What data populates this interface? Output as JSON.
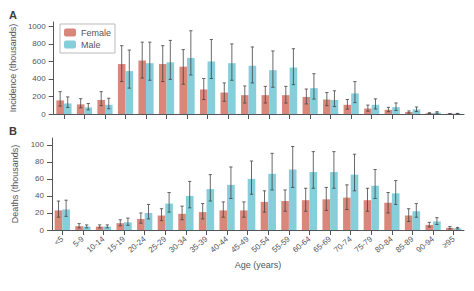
{
  "chart_data": [
    {
      "type": "bar",
      "title": "A",
      "ylabel": "Incidence (thousands)",
      "categories": [
        "<5",
        "5-9",
        "10-14",
        "15-19",
        "20-24",
        "25-29",
        "30-34",
        "35-39",
        "40-44",
        "45-49",
        "50-54",
        "55-59",
        "60-64",
        "65-69",
        "70-74",
        "75-79",
        "80-84",
        "85-89",
        "90-94",
        "≥95"
      ],
      "series": [
        {
          "name": "Female",
          "color": "#d9877b",
          "values": [
            155,
            110,
            160,
            570,
            610,
            570,
            540,
            280,
            245,
            215,
            215,
            215,
            195,
            165,
            105,
            62,
            48,
            22,
            9,
            3
          ],
          "error_low": [
            65,
            40,
            65,
            200,
            200,
            200,
            200,
            115,
            100,
            90,
            90,
            90,
            80,
            70,
            50,
            30,
            22,
            11,
            5,
            2
          ],
          "error_high": [
            100,
            65,
            95,
            210,
            210,
            210,
            195,
            125,
            110,
            105,
            100,
            100,
            90,
            80,
            60,
            40,
            28,
            13,
            6,
            2
          ]
        },
        {
          "name": "Male",
          "color": "#85ceda",
          "values": [
            120,
            75,
            105,
            490,
            580,
            590,
            640,
            600,
            580,
            550,
            500,
            530,
            295,
            160,
            235,
            105,
            78,
            52,
            16,
            4
          ],
          "error_low": [
            45,
            28,
            45,
            195,
            195,
            195,
            195,
            195,
            195,
            195,
            195,
            195,
            125,
            75,
            105,
            48,
            38,
            24,
            8,
            2
          ],
          "error_high": [
            75,
            45,
            75,
            240,
            240,
            250,
            310,
            250,
            220,
            215,
            220,
            215,
            165,
            105,
            135,
            68,
            48,
            28,
            10,
            3
          ]
        }
      ],
      "ylim": [
        0,
        1050
      ],
      "yticks": [
        0,
        200,
        400,
        600,
        800,
        1000
      ],
      "grid": false,
      "legend": "upper left",
      "tick_labels": "y"
    },
    {
      "type": "bar",
      "title": "B",
      "xlabel": "Age (years)",
      "ylabel": "Deaths (thousands)",
      "categories": [
        "<5",
        "5-9",
        "10-14",
        "15-19",
        "20-24",
        "25-29",
        "30-34",
        "35-39",
        "40-44",
        "45-49",
        "50-54",
        "55-59",
        "60-64",
        "65-69",
        "70-74",
        "75-79",
        "80-84",
        "85-89",
        "90-94",
        "≥95"
      ],
      "series": [
        {
          "name": "Female",
          "color": "#d9877b",
          "values": [
            23,
            4.5,
            4,
            8,
            13,
            17,
            19,
            21,
            23,
            23,
            33,
            34,
            35,
            36,
            38,
            35,
            32,
            17,
            6,
            2.5
          ],
          "error_low": [
            8,
            2,
            1.5,
            3,
            5,
            6,
            7,
            8,
            8,
            8,
            12,
            12,
            13,
            13,
            14,
            13,
            12,
            7,
            2.5,
            1.2
          ],
          "error_high": [
            11,
            3,
            2,
            4,
            7,
            8,
            9,
            10,
            10,
            10,
            13,
            13,
            14,
            14,
            15,
            14,
            12,
            8,
            3,
            1.5
          ]
        },
        {
          "name": "Male",
          "color": "#85ceda",
          "values": [
            24,
            4,
            4,
            9,
            20,
            31,
            40,
            48,
            53,
            60,
            66,
            71,
            68,
            68,
            65,
            52,
            43,
            22,
            10,
            2
          ],
          "error_low": [
            8,
            1.5,
            1.5,
            3.5,
            7,
            10,
            14,
            14,
            16,
            18,
            19,
            21,
            19,
            19,
            19,
            15,
            13,
            7,
            3.5,
            0.8
          ],
          "error_high": [
            11,
            2,
            2,
            5,
            10,
            13,
            17,
            17,
            21,
            21,
            24,
            27,
            24,
            24,
            24,
            19,
            15,
            9,
            4.5,
            1
          ]
        }
      ],
      "ylim": [
        0,
        108
      ],
      "yticks": [
        0,
        20,
        40,
        60,
        80,
        100
      ],
      "grid": false
    }
  ]
}
